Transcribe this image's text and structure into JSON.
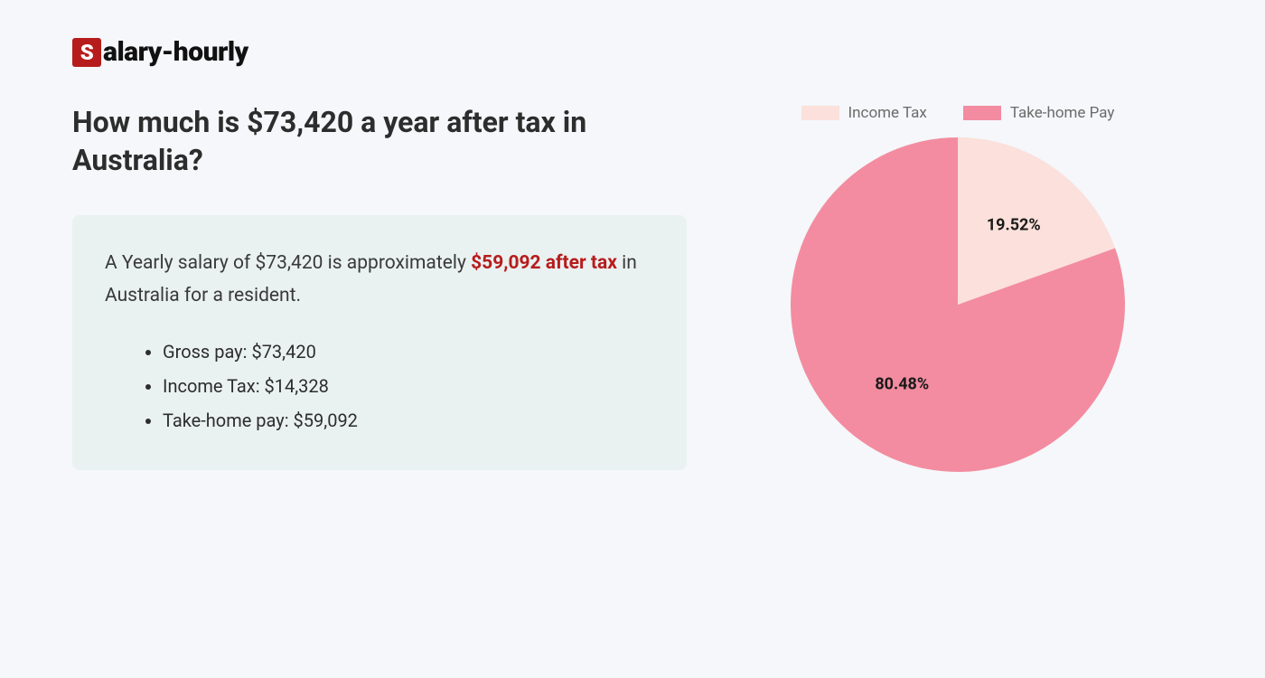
{
  "logo": {
    "badge_letter": "S",
    "rest": "alary-hourly",
    "badge_bg": "#b71c1c",
    "badge_fg": "#ffffff",
    "text_color": "#111111"
  },
  "heading": "How much is $73,420 a year after tax in Australia?",
  "summary": {
    "prefix": "A Yearly salary of $73,420 is approximately ",
    "highlight": "$59,092 after tax",
    "suffix": " in Australia for a resident.",
    "highlight_color": "#b71c1c"
  },
  "bullets": [
    "Gross pay: $73,420",
    "Income Tax: $14,328",
    "Take-home pay: $59,092"
  ],
  "info_box_bg": "#eaf1f1",
  "page_bg": "#f5f7fa",
  "chart": {
    "type": "pie",
    "legend": [
      {
        "label": "Income Tax",
        "color": "#fbe0db"
      },
      {
        "label": "Take-home Pay",
        "color": "#f38ca0"
      }
    ],
    "slices": [
      {
        "label": "Income Tax",
        "value": 19.52,
        "display": "19.52%",
        "color": "#fbe0db"
      },
      {
        "label": "Take-home Pay",
        "value": 80.48,
        "display": "80.48%",
        "color": "#f38ca0"
      }
    ],
    "start_angle_deg": -90,
    "radius": 185,
    "label_fontsize": 18,
    "label_fontweight": 700,
    "label_color": "#1a1a1a",
    "legend_text_color": "#6b6b6b",
    "legend_fontsize": 17
  }
}
